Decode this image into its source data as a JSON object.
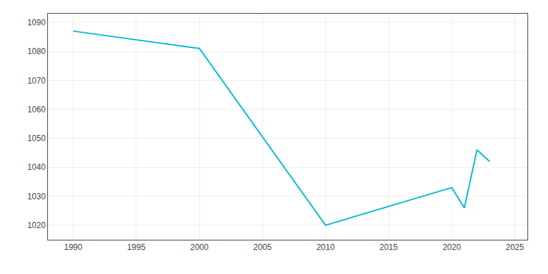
{
  "chart_data": {
    "type": "line",
    "x": [
      1990,
      2000,
      2010,
      2020,
      2021,
      2022,
      2023
    ],
    "values": [
      1087,
      1081,
      1020,
      1033,
      1026,
      1046,
      1042
    ],
    "color": "#00BCD4",
    "xlim": [
      1988,
      2026
    ],
    "ylim": [
      1015,
      1093
    ],
    "xticks": [
      1990,
      1995,
      2000,
      2005,
      2010,
      2015,
      2020,
      2025
    ],
    "yticks": [
      1020,
      1030,
      1040,
      1050,
      1060,
      1070,
      1080,
      1090
    ],
    "grid": true
  }
}
